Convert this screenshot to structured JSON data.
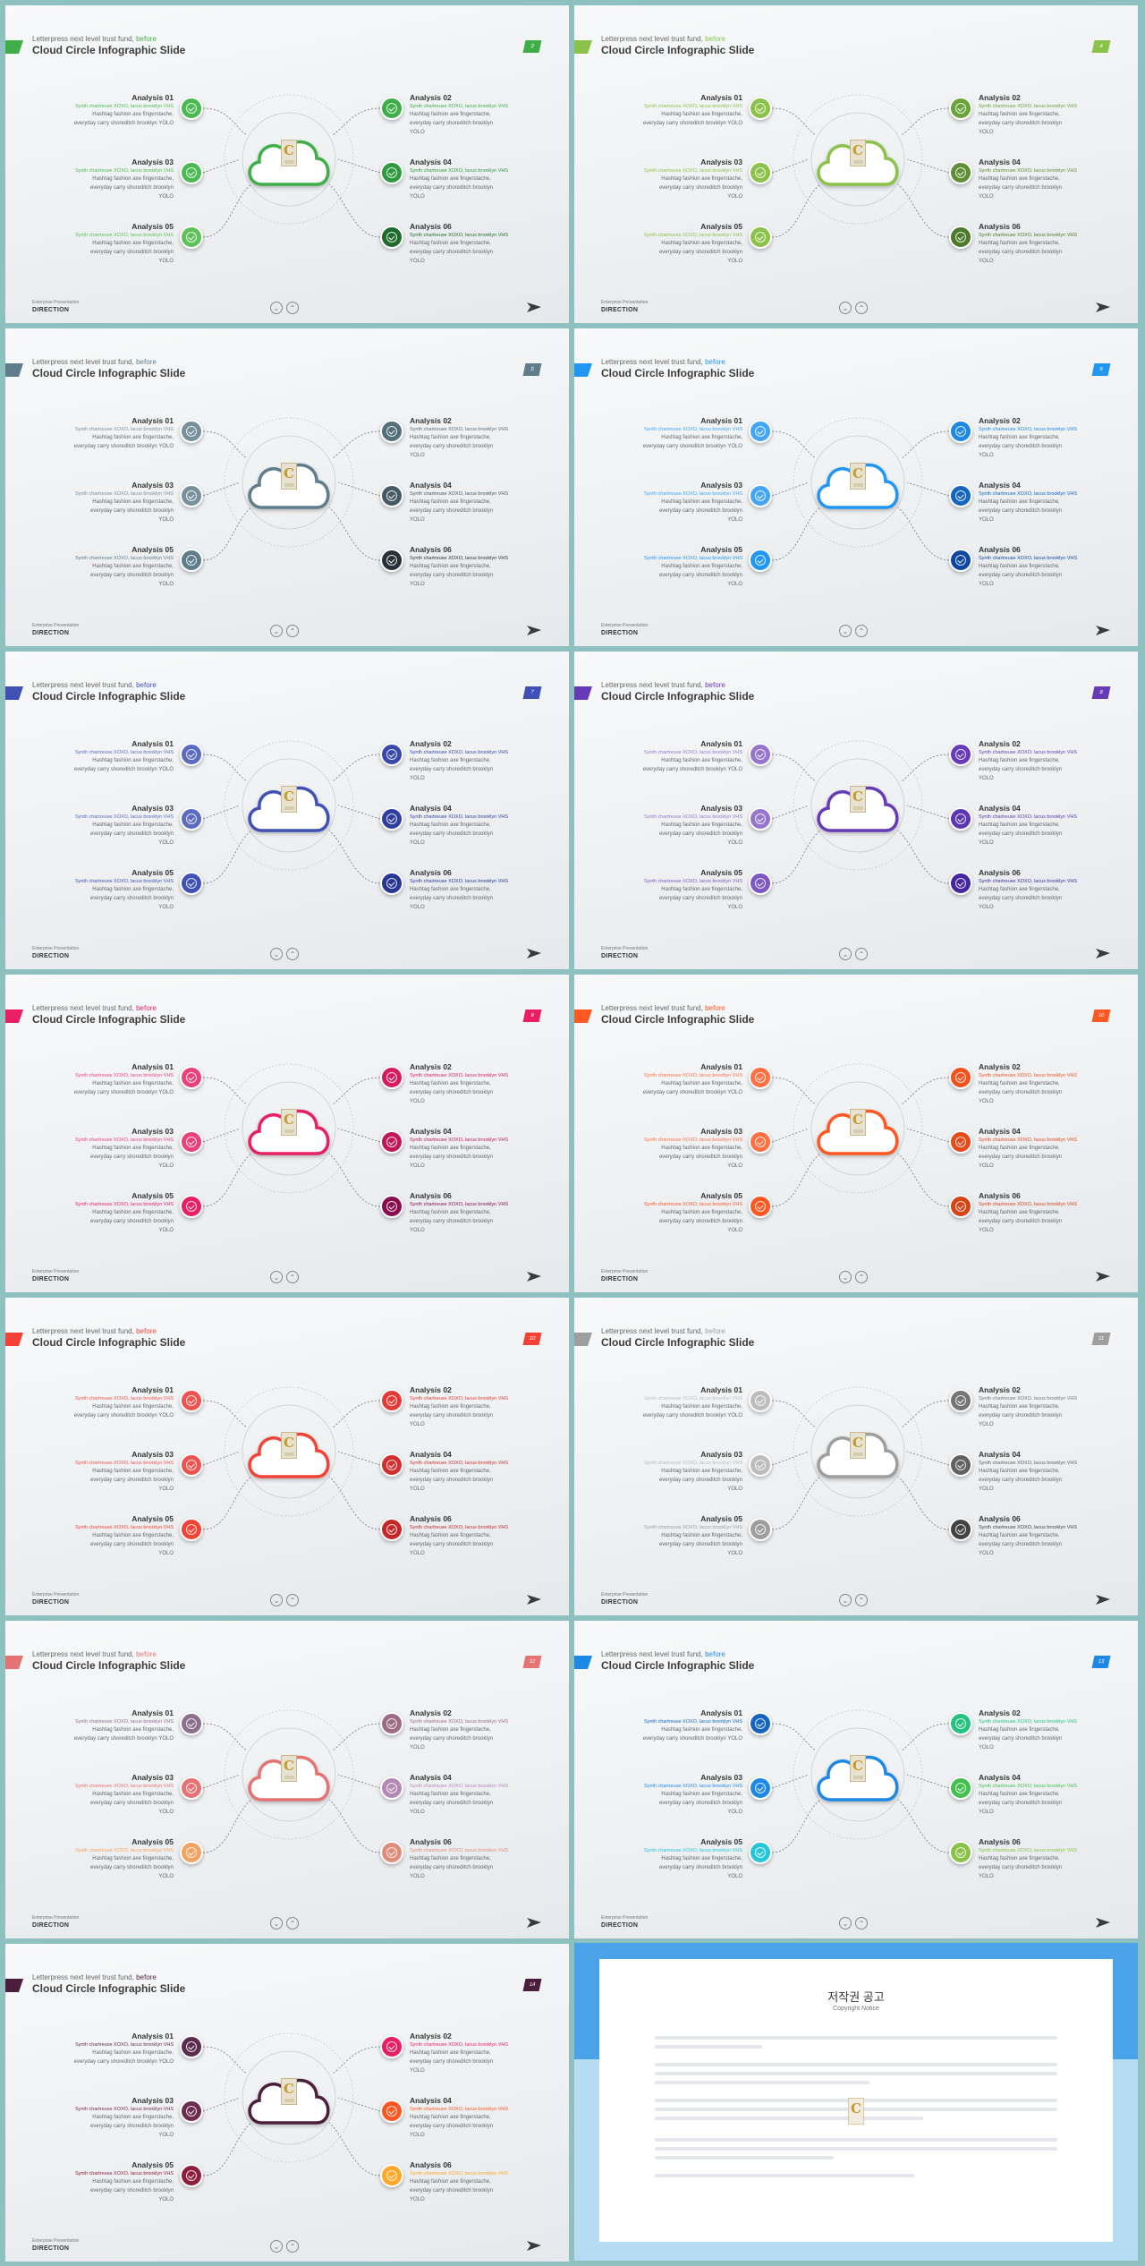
{
  "slide_template": {
    "kicker_prefix": "Letterpress next level trust fund,",
    "kicker_emphasis": "before",
    "title": "Cloud Circle Infographic Slide",
    "footer_small": "Enterprise Presentation",
    "footer_direction": "DIRECTION",
    "nav_prev": "⌄",
    "nav_next": "⌃",
    "items": [
      {
        "title": "Analysis 01",
        "sub": "Synth chartreuse XOXO, lacus brooklyn VHS",
        "body": [
          "Hashtag fashion axe fingerstache,",
          "everyday carry shoreditch brooklyn YOLO"
        ]
      },
      {
        "title": "Analysis 02",
        "sub": "Synth chartreuse XOXO, lacus brooklyn VHS",
        "body": [
          "Hashtag fashion axe fingerstache,",
          "everyday carry shoreditch brooklyn",
          "YOLO"
        ]
      },
      {
        "title": "Analysis 03",
        "sub": "Synth chartreuse XOXO, lacus brooklyn VHS",
        "body": [
          "Hashtag fashion axe fingerstache,",
          "everyday carry shoreditch brooklyn",
          "YOLO"
        ]
      },
      {
        "title": "Analysis 04",
        "sub": "Synth chartreuse XOXO, lacus brooklyn VHS",
        "body": [
          "Hashtag fashion axe fingerstache,",
          "everyday carry shoreditch brooklyn",
          "YOLO"
        ]
      },
      {
        "title": "Analysis 05",
        "sub": "Synth chartreuse XOXO, lacus brooklyn VHS",
        "body": [
          "Hashtag fashion axe fingerstache,",
          "everyday carry shoreditch brooklyn",
          "YOLO"
        ]
      },
      {
        "title": "Analysis 06",
        "sub": "Synth chartreuse XOXO, lacus brooklyn VHS",
        "body": [
          "Hashtag fashion axe fingerstache,",
          "everyday carry shoreditch brooklyn",
          "YOLO"
        ]
      }
    ]
  },
  "slides": [
    {
      "page": "3",
      "accent": "#3fae49",
      "nodes": [
        "#4cba52",
        "#3fae49",
        "#4cba52",
        "#2f9a3e",
        "#5ec15a",
        "#1f6b2d"
      ]
    },
    {
      "page": "4",
      "accent": "#8bc34a",
      "nodes": [
        "#8bc34a",
        "#6aa33a",
        "#8bc34a",
        "#5e8f34",
        "#8bc34a",
        "#4a7a2a"
      ]
    },
    {
      "page": "5",
      "accent": "#607d8b",
      "nodes": [
        "#78909c",
        "#546e7a",
        "#78909c",
        "#455a64",
        "#607d8b",
        "#263238"
      ]
    },
    {
      "page": "6",
      "accent": "#2196f3",
      "nodes": [
        "#42a5f5",
        "#1e88e5",
        "#42a5f5",
        "#1565c0",
        "#2196f3",
        "#0d47a1"
      ]
    },
    {
      "page": "7",
      "accent": "#3f51b5",
      "nodes": [
        "#5c6bc0",
        "#3949ab",
        "#5c6bc0",
        "#303f9f",
        "#3f51b5",
        "#283593"
      ]
    },
    {
      "page": "8",
      "accent": "#673ab7",
      "nodes": [
        "#9575cd",
        "#673ab7",
        "#9575cd",
        "#5e35b1",
        "#7e57c2",
        "#4527a0"
      ]
    },
    {
      "page": "9",
      "accent": "#e91e63",
      "nodes": [
        "#ec407a",
        "#d81b60",
        "#ec407a",
        "#c2185b",
        "#e91e63",
        "#880e4f"
      ]
    },
    {
      "page": "10",
      "accent": "#ff5722",
      "nodes": [
        "#ff7043",
        "#f4511e",
        "#ff7043",
        "#e64a19",
        "#ff5722",
        "#d84315"
      ]
    },
    {
      "page": "10",
      "accent": "#f44336",
      "nodes": [
        "#ef5350",
        "#e53935",
        "#ef5350",
        "#d32f2f",
        "#f44336",
        "#c62828"
      ]
    },
    {
      "page": "11",
      "accent": "#9e9e9e",
      "nodes": [
        "#bdbdbd",
        "#757575",
        "#bdbdbd",
        "#616161",
        "#9e9e9e",
        "#424242"
      ]
    },
    {
      "page": "12",
      "accent": "#e57373",
      "nodes": [
        "#8d6e8f",
        "#9c6b85",
        "#e57373",
        "#b48ab4",
        "#f4a261",
        "#e08e7b"
      ]
    },
    {
      "page": "13",
      "accent": "#1e88e5",
      "nodes": [
        "#1565c0",
        "#26c281",
        "#1e88e5",
        "#43c04e",
        "#26c6da",
        "#8bc34a"
      ]
    },
    {
      "page": "14",
      "accent": "#4a1e3c",
      "nodes": [
        "#5b2c4e",
        "#e91e63",
        "#6d2c4e",
        "#ff5722",
        "#8e1e3c",
        "#ffa726"
      ]
    }
  ],
  "copyright": {
    "title": "저작권 공고",
    "subtitle": "Copyright Notice"
  }
}
